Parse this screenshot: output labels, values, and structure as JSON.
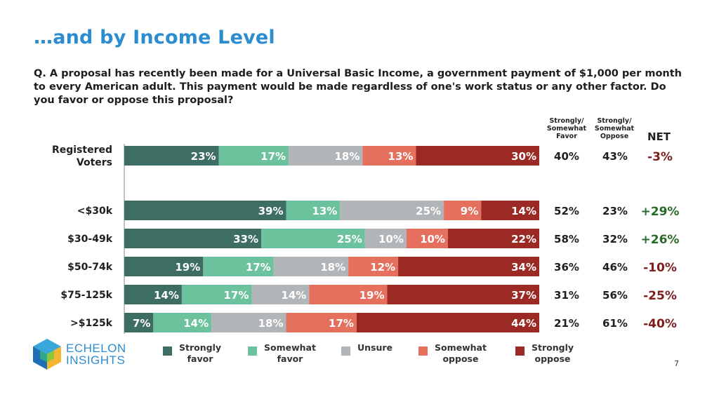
{
  "slide": {
    "title": "…and by Income Level",
    "question": "Q. A proposal has recently been made for a Universal Basic Income, a government payment of $1,000 per month to every American adult. This payment would be made regardless of one's work status or any other factor. Do you favor or oppose this proposal?",
    "page_number": "7",
    "logo_line1": "ECHELON",
    "logo_line2": "INSIGHTS"
  },
  "table_headers": {
    "favor": [
      "Strongly/",
      "Somewhat",
      "Favor"
    ],
    "oppose": [
      "Strongly/",
      "Somewhat",
      "Oppose"
    ],
    "net": "NET"
  },
  "colors": {
    "strongly_favor": "#3e6e63",
    "somewhat_favor": "#6cc29c",
    "unsure": "#b1b5b8",
    "somewhat_oppose": "#e5705e",
    "strongly_oppose": "#9b2a24",
    "net_positive": "#2a6b2a",
    "net_negative": "#7d1d1d"
  },
  "chart_data": {
    "type": "bar",
    "orientation": "horizontal-stacked-100",
    "categories": [
      [
        "Registered",
        "Voters"
      ],
      [
        "<$30k"
      ],
      [
        "$30-49k"
      ],
      [
        "$50-74k"
      ],
      [
        "$75-125k"
      ],
      [
        ">$125k"
      ]
    ],
    "series": [
      {
        "name": "Strongly favor",
        "legend": [
          "Strongly",
          "favor"
        ],
        "values": [
          23,
          39,
          33,
          19,
          14,
          7
        ]
      },
      {
        "name": "Somewhat favor",
        "legend": [
          "Somewhat",
          "favor"
        ],
        "values": [
          17,
          13,
          25,
          17,
          17,
          14
        ]
      },
      {
        "name": "Unsure",
        "legend": [
          "Unsure"
        ],
        "values": [
          18,
          25,
          10,
          18,
          14,
          18
        ]
      },
      {
        "name": "Somewhat oppose",
        "legend": [
          "Somewhat",
          "oppose"
        ],
        "values": [
          13,
          9,
          10,
          12,
          19,
          17
        ]
      },
      {
        "name": "Strongly oppose",
        "legend": [
          "Strongly",
          "oppose"
        ],
        "values": [
          30,
          14,
          22,
          34,
          37,
          44
        ]
      }
    ],
    "favor_total": [
      "40%",
      "52%",
      "58%",
      "36%",
      "31%",
      "21%"
    ],
    "oppose_total": [
      "43%",
      "23%",
      "32%",
      "46%",
      "56%",
      "61%"
    ],
    "net": [
      "-3%",
      "+29%",
      "+26%",
      "-10%",
      "-25%",
      "-40%"
    ],
    "legend_position": "bottom"
  }
}
